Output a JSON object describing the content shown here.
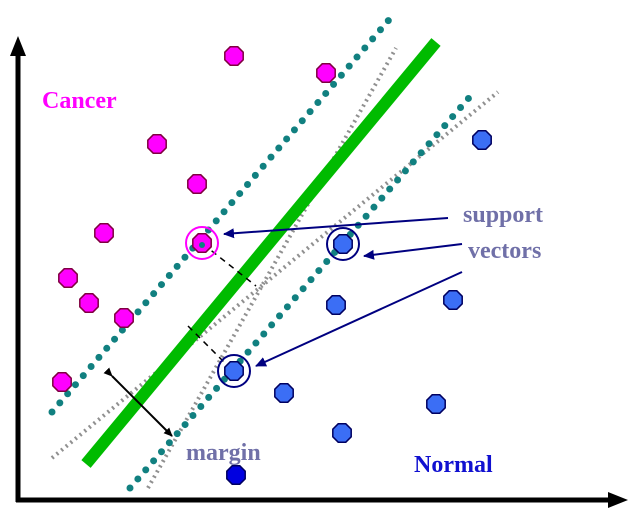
{
  "labels": {
    "cancer": "Cancer",
    "normal": "Normal",
    "support_line1": "support",
    "support_line2": "vectors",
    "margin": "margin"
  },
  "colors": {
    "cancer": "#ff00ff",
    "normal": "#3b6ef5",
    "normal_dark": "#0000e0",
    "hyperplane": "#00bb00",
    "margin_dots": "#118080",
    "alt_lines": "#909090",
    "arrows": "#000080",
    "support_text": "#7070a8",
    "normal_text": "#1010d0"
  },
  "icons": {
    "cancer_point": "octagon-magenta",
    "normal_point": "octagon-blue",
    "support_marker": "circle-outline"
  }
}
